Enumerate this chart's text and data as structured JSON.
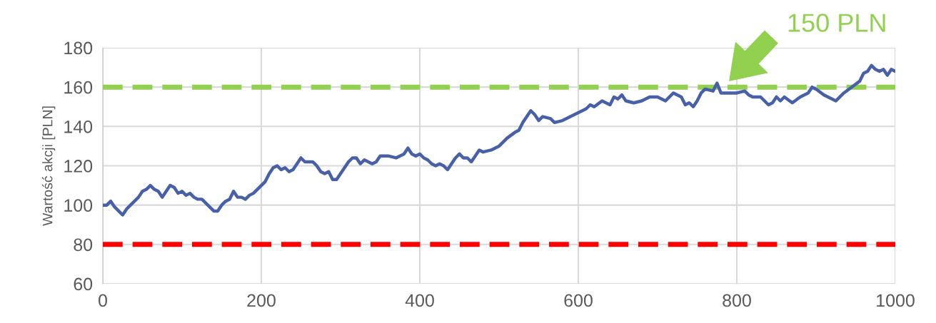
{
  "chart_data": {
    "type": "line",
    "ylabel": "Wartość akcji [PLN]",
    "x": [
      0,
      5,
      10,
      15,
      20,
      25,
      30,
      35,
      40,
      45,
      50,
      55,
      60,
      65,
      70,
      75,
      80,
      85,
      90,
      95,
      100,
      105,
      110,
      115,
      120,
      125,
      130,
      135,
      140,
      145,
      150,
      155,
      160,
      165,
      170,
      175,
      180,
      185,
      190,
      195,
      200,
      205,
      210,
      215,
      220,
      225,
      230,
      235,
      240,
      245,
      250,
      255,
      260,
      265,
      270,
      275,
      280,
      285,
      290,
      295,
      300,
      305,
      310,
      315,
      320,
      325,
      330,
      335,
      340,
      345,
      350,
      360,
      370,
      380,
      385,
      390,
      395,
      400,
      405,
      410,
      415,
      420,
      425,
      430,
      435,
      440,
      445,
      450,
      455,
      460,
      465,
      470,
      475,
      480,
      490,
      500,
      510,
      520,
      525,
      530,
      535,
      540,
      545,
      550,
      555,
      565,
      570,
      580,
      590,
      600,
      610,
      615,
      620,
      630,
      640,
      645,
      650,
      655,
      660,
      670,
      680,
      690,
      700,
      710,
      720,
      730,
      735,
      740,
      745,
      750,
      755,
      760,
      770,
      775,
      780,
      790,
      800,
      810,
      815,
      820,
      830,
      840,
      845,
      850,
      855,
      860,
      870,
      880,
      890,
      895,
      900,
      910,
      920,
      925,
      935,
      945,
      955,
      960,
      965,
      970,
      975,
      980,
      985,
      990,
      995,
      1000
    ],
    "series": [
      {
        "color": "#4760a8",
        "values": [
          100,
          100,
          102,
          99,
          97,
          95,
          98,
          100,
          102,
          104,
          107,
          108,
          110,
          108,
          107,
          104,
          107,
          110,
          109,
          106,
          107,
          105,
          106,
          104,
          103,
          103,
          101,
          99,
          97,
          97,
          100,
          102,
          103,
          107,
          104,
          104,
          103,
          105,
          106,
          108,
          110,
          112,
          116,
          119,
          120,
          118,
          119,
          117,
          118,
          121,
          124,
          122,
          122,
          122,
          120,
          117,
          116,
          117,
          113,
          113,
          116,
          119,
          122,
          124,
          124,
          121,
          123,
          122,
          121,
          122,
          125,
          125,
          124,
          126,
          129,
          126,
          125,
          126,
          124,
          123,
          121,
          120,
          121,
          120,
          118,
          121,
          124,
          126,
          124,
          124,
          122,
          125,
          128,
          127,
          128,
          130,
          134,
          137,
          138,
          142,
          145,
          148,
          146,
          143,
          145,
          144,
          142,
          143,
          145,
          147,
          149,
          151,
          150,
          153,
          151,
          155,
          154,
          156,
          153,
          152,
          153,
          155,
          155,
          153,
          157,
          155,
          151,
          152,
          150,
          153,
          157,
          159,
          158,
          162,
          157,
          157,
          157,
          158,
          156,
          155,
          155,
          151,
          152,
          155,
          153,
          155,
          152,
          155,
          157,
          160,
          159,
          156,
          154,
          153,
          157,
          160,
          163,
          167,
          168,
          171,
          169,
          168,
          169,
          166,
          169,
          168
        ]
      }
    ],
    "xlim": [
      0,
      1000
    ],
    "xticks": [
      0,
      200,
      400,
      600,
      800,
      1000
    ],
    "ylim": [
      60,
      180
    ],
    "yticks": [
      60,
      80,
      100,
      120,
      140,
      160,
      180
    ],
    "grid": true,
    "marker": "none",
    "line_style": "solid",
    "ref_lines": [
      {
        "axis": "y",
        "value": 160,
        "label": null,
        "color": "#92d050",
        "line_style": "dashed"
      },
      {
        "axis": "y",
        "value": 80,
        "label": null,
        "color": "#ff0000",
        "line_style": "dashed"
      }
    ],
    "annotations": [
      "150 PLN"
    ]
  }
}
